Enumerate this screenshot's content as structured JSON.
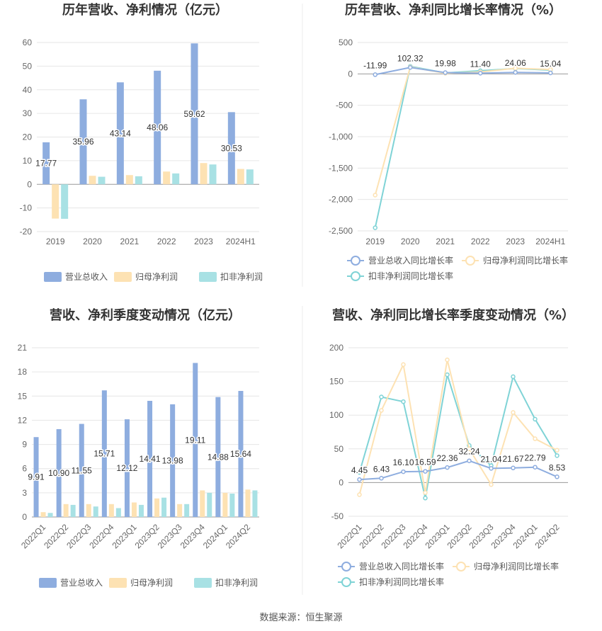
{
  "source_note": "数据来源：恒生聚源",
  "colors": {
    "revenue": "#8eaddf",
    "parent_profit": "#fde2b3",
    "deducted_profit": "#a8e1e4",
    "revenue_line": "#8eaddf",
    "parent_line": "#fde2b3",
    "deducted_line": "#7fd3d6",
    "grid": "#e6e6e6",
    "axis": "#999999"
  },
  "chart_data": [
    {
      "id": "annual-amount",
      "type": "bar",
      "title": "历年营收、净利情况（亿元）",
      "categories": [
        "2019",
        "2020",
        "2021",
        "2022",
        "2023",
        "2024H1"
      ],
      "yticks": [
        "60",
        "50",
        "40",
        "30",
        "20",
        "10",
        "0",
        "-10",
        "-20"
      ],
      "ylim": [
        -20,
        60
      ],
      "grid": true,
      "legend_position": "bottom",
      "series": [
        {
          "name": "营业总收入",
          "color_key": "revenue",
          "values": [
            17.77,
            35.96,
            43.14,
            48.06,
            59.62,
            30.53
          ],
          "labels": [
            "17.77",
            "35.96",
            "43.14",
            "48.06",
            "59.62",
            "30.53"
          ]
        },
        {
          "name": "归母净利润",
          "color_key": "parent_profit",
          "values": [
            -14.5,
            3.6,
            3.9,
            5.4,
            9.0,
            6.5
          ]
        },
        {
          "name": "扣非净利润",
          "color_key": "deducted_profit",
          "values": [
            -14.6,
            3.2,
            3.4,
            4.6,
            8.4,
            6.3
          ]
        }
      ]
    },
    {
      "id": "annual-growth",
      "type": "line",
      "title": "历年营收、净利同比增长率情况（%）",
      "categories": [
        "2019",
        "2020",
        "2021",
        "2022",
        "2023",
        "2024H1"
      ],
      "yticks": [
        "500",
        "0",
        "-500",
        "-1,000",
        "-1,500",
        "-2,000",
        "-2,500"
      ],
      "ylim": [
        -2500,
        500
      ],
      "grid": true,
      "legend_position": "bottom",
      "series": [
        {
          "name": "营业总收入同比增长率",
          "color_key": "revenue_line",
          "values": [
            -11.99,
            102.32,
            19.98,
            11.4,
            24.06,
            15.04
          ],
          "labels": [
            "-11.99",
            "102.32",
            "19.98",
            "11.40",
            "24.06",
            "15.04"
          ]
        },
        {
          "name": "归母净利润同比增长率",
          "color_key": "parent_line",
          "values": [
            -1930,
            110,
            10,
            30,
            90,
            70
          ]
        },
        {
          "name": "扣非净利润同比增长率",
          "color_key": "deducted_line",
          "values": [
            -2450,
            120,
            15,
            50,
            85,
            60
          ]
        }
      ]
    },
    {
      "id": "quarterly-amount",
      "type": "bar",
      "title": "营收、净利季度变动情况（亿元）",
      "categories": [
        "2022Q1",
        "2022Q2",
        "2022Q3",
        "2022Q4",
        "2023Q1",
        "2023Q2",
        "2023Q3",
        "2023Q4",
        "2024Q1",
        "2024Q2"
      ],
      "yticks": [
        "21",
        "18",
        "15",
        "12",
        "9",
        "6",
        "3",
        "0"
      ],
      "ylim": [
        0,
        21
      ],
      "grid": true,
      "legend_position": "bottom",
      "series": [
        {
          "name": "营业总收入",
          "color_key": "revenue",
          "values": [
            9.91,
            10.9,
            11.55,
            15.71,
            12.12,
            14.41,
            13.98,
            19.11,
            14.88,
            15.64
          ],
          "labels": [
            "9.91",
            "10.90",
            "11.55",
            "15.71",
            "12.12",
            "14.41",
            "13.98",
            "19.11",
            "14.88",
            "15.64"
          ]
        },
        {
          "name": "归母净利润",
          "color_key": "parent_profit",
          "values": [
            0.6,
            1.6,
            1.6,
            1.6,
            1.8,
            2.3,
            1.6,
            3.3,
            3.0,
            3.4
          ]
        },
        {
          "name": "扣非净利润",
          "color_key": "deducted_profit",
          "values": [
            0.5,
            1.5,
            1.3,
            1.1,
            1.5,
            2.4,
            1.6,
            3.0,
            2.9,
            3.3
          ]
        }
      ]
    },
    {
      "id": "quarterly-growth",
      "type": "line",
      "title": "营收、净利同比增长率季度变动情况（%）",
      "categories": [
        "2022Q1",
        "2022Q2",
        "2022Q3",
        "2022Q4",
        "2023Q1",
        "2023Q2",
        "2023Q3",
        "2023Q4",
        "2024Q1",
        "2024Q2"
      ],
      "yticks": [
        "200",
        "150",
        "100",
        "50",
        "0",
        "-50"
      ],
      "ylim": [
        -50,
        200
      ],
      "grid": true,
      "legend_position": "bottom",
      "series": [
        {
          "name": "营业总收入同比增长率",
          "color_key": "revenue_line",
          "values": [
            4.45,
            6.43,
            16.1,
            16.59,
            22.36,
            32.24,
            21.04,
            21.67,
            22.79,
            8.53
          ],
          "labels": [
            "4.45",
            "6.43",
            "16.10",
            "16.59",
            "22.36",
            "32.24",
            "21.04",
            "21.67",
            "22.79",
            "8.53"
          ]
        },
        {
          "name": "归母净利润同比增长率",
          "color_key": "parent_line",
          "values": [
            -18,
            107,
            175,
            -15,
            182,
            50,
            -3,
            104,
            65,
            48
          ]
        },
        {
          "name": "扣非净利润同比增长率",
          "color_key": "deducted_line",
          "values": [
            15,
            127,
            120,
            -23,
            160,
            55,
            25,
            157,
            94,
            40
          ]
        }
      ]
    }
  ]
}
